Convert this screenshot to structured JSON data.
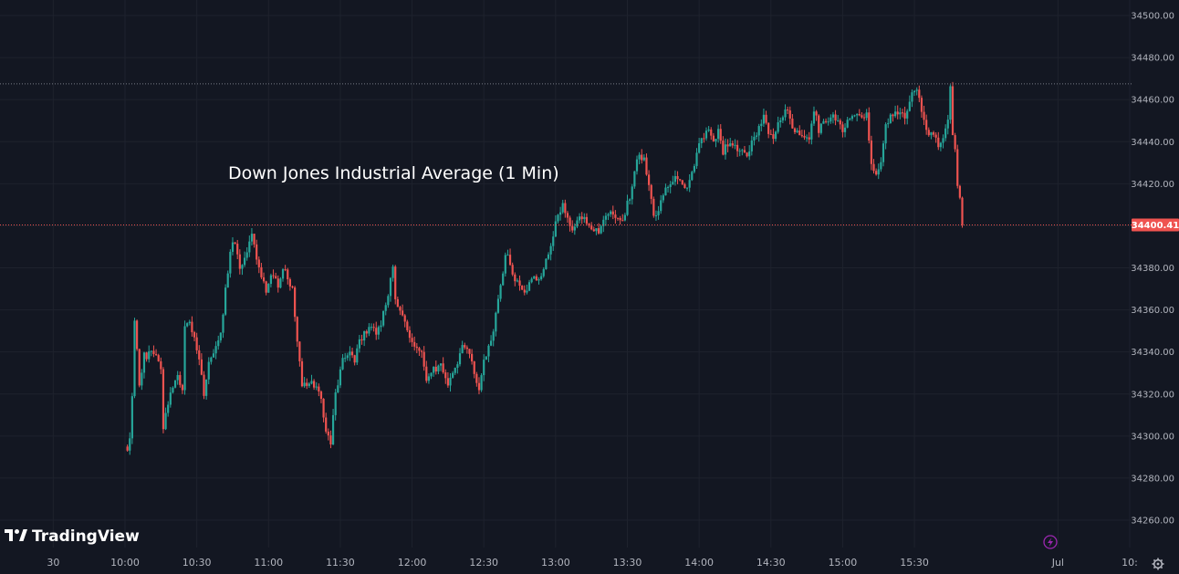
{
  "chart_data": {
    "type": "candlestick",
    "title": "Down Jones Industrial Average (1 Min)",
    "brand": "TradingView",
    "colors": {
      "background": "#131722",
      "up": "#26a69a",
      "down": "#ef5350",
      "grid": "#1e222d",
      "text": "#b2b5be",
      "last_price_line": "#ef5350",
      "high_line": "#787b86",
      "lightning": "#9c27b0"
    },
    "y_axis": {
      "min": 34250,
      "max": 34505,
      "ticks": [
        "34500.00",
        "34480.00",
        "34460.00",
        "34440.00",
        "34420.00",
        "34400.00",
        "34380.00",
        "34360.00",
        "34340.00",
        "34320.00",
        "34300.00",
        "34280.00",
        "34260.00"
      ],
      "tick_values": [
        34500,
        34480,
        34460,
        34440,
        34420,
        34400,
        34380,
        34360,
        34340,
        34320,
        34300,
        34280,
        34260
      ],
      "position": "right"
    },
    "x_axis": {
      "labels": [
        "30",
        "10:00",
        "10:30",
        "11:00",
        "11:30",
        "12:00",
        "12:30",
        "13:00",
        "13:30",
        "14:00",
        "14:30",
        "15:00",
        "15:30",
        "Jul",
        "10:"
      ],
      "label_minutes": [
        -30,
        0,
        30,
        60,
        90,
        120,
        150,
        180,
        210,
        240,
        270,
        300,
        330,
        390,
        420
      ],
      "session_start": "09:30",
      "interval": "1 Min",
      "minute_range": [
        -47,
        425
      ]
    },
    "last_price": 34400.41,
    "last_price_label": "34400.41",
    "high_price": 34467.5,
    "anchors": [
      [
        1,
        34293
      ],
      [
        2,
        34300
      ],
      [
        3,
        34318
      ],
      [
        4,
        34355
      ],
      [
        6,
        34325
      ],
      [
        8,
        34338
      ],
      [
        12,
        34340
      ],
      [
        15,
        34333
      ],
      [
        16,
        34305
      ],
      [
        19,
        34322
      ],
      [
        22,
        34330
      ],
      [
        24,
        34320
      ],
      [
        25,
        34352
      ],
      [
        27,
        34355
      ],
      [
        31,
        34335
      ],
      [
        33,
        34320
      ],
      [
        35,
        34335
      ],
      [
        40,
        34350
      ],
      [
        44,
        34388
      ],
      [
        46,
        34393
      ],
      [
        48,
        34380
      ],
      [
        51,
        34387
      ],
      [
        53,
        34395
      ],
      [
        56,
        34380
      ],
      [
        59,
        34370
      ],
      [
        61,
        34378
      ],
      [
        64,
        34372
      ],
      [
        66,
        34380
      ],
      [
        68,
        34375
      ],
      [
        70,
        34370
      ],
      [
        72,
        34345
      ],
      [
        74,
        34325
      ],
      [
        78,
        34326
      ],
      [
        82,
        34318
      ],
      [
        84,
        34302
      ],
      [
        86,
        34296
      ],
      [
        88,
        34320
      ],
      [
        91,
        34338
      ],
      [
        93,
        34340
      ],
      [
        96,
        34336
      ],
      [
        98,
        34346
      ],
      [
        102,
        34350
      ],
      [
        106,
        34350
      ],
      [
        110,
        34368
      ],
      [
        112,
        34379
      ],
      [
        113,
        34365
      ],
      [
        116,
        34358
      ],
      [
        119,
        34345
      ],
      [
        122,
        34342
      ],
      [
        124,
        34340
      ],
      [
        126,
        34328
      ],
      [
        128,
        34330
      ],
      [
        130,
        34332
      ],
      [
        132,
        34335
      ],
      [
        135,
        34324
      ],
      [
        138,
        34332
      ],
      [
        140,
        34340
      ],
      [
        142,
        34343
      ],
      [
        144,
        34338
      ],
      [
        146,
        34331
      ],
      [
        148,
        34321
      ],
      [
        150,
        34335
      ],
      [
        153,
        34345
      ],
      [
        155,
        34358
      ],
      [
        157,
        34370
      ],
      [
        159,
        34385
      ],
      [
        160,
        34387
      ],
      [
        162,
        34376
      ],
      [
        165,
        34370
      ],
      [
        168,
        34369
      ],
      [
        170,
        34375
      ],
      [
        173,
        34373
      ],
      [
        175,
        34381
      ],
      [
        177,
        34385
      ],
      [
        179,
        34395
      ],
      [
        181,
        34406
      ],
      [
        183,
        34410
      ],
      [
        185,
        34402
      ],
      [
        187,
        34398
      ],
      [
        190,
        34405
      ],
      [
        193,
        34401
      ],
      [
        196,
        34399
      ],
      [
        198,
        34397
      ],
      [
        200,
        34403
      ],
      [
        203,
        34405
      ],
      [
        206,
        34404
      ],
      [
        208,
        34403
      ],
      [
        211,
        34414
      ],
      [
        213,
        34425
      ],
      [
        215,
        34435
      ],
      [
        217,
        34431
      ],
      [
        219,
        34421
      ],
      [
        221,
        34406
      ],
      [
        223,
        34407
      ],
      [
        225,
        34415
      ],
      [
        227,
        34420
      ],
      [
        230,
        34424
      ],
      [
        232,
        34420
      ],
      [
        234,
        34416
      ],
      [
        236,
        34420
      ],
      [
        238,
        34430
      ],
      [
        240,
        34438
      ],
      [
        242,
        34442
      ],
      [
        244,
        34447
      ],
      [
        246,
        34440
      ],
      [
        248,
        34445
      ],
      [
        250,
        34435
      ],
      [
        252,
        34439
      ],
      [
        254,
        34440
      ],
      [
        256,
        34437
      ],
      [
        258,
        34435
      ],
      [
        260,
        34434
      ],
      [
        263,
        34441
      ],
      [
        265,
        34447
      ],
      [
        267,
        34451
      ],
      [
        269,
        34445
      ],
      [
        271,
        34441
      ],
      [
        273,
        34449
      ],
      [
        275,
        34452
      ],
      [
        277,
        34455
      ],
      [
        279,
        34448
      ],
      [
        281,
        34445
      ],
      [
        284,
        34443
      ],
      [
        286,
        34441
      ],
      [
        288,
        34455
      ],
      [
        290,
        34446
      ],
      [
        293,
        34449
      ],
      [
        296,
        34452
      ],
      [
        298,
        34451
      ],
      [
        300,
        34445
      ],
      [
        302,
        34451
      ],
      [
        304,
        34452
      ],
      [
        306,
        34454
      ],
      [
        308,
        34450
      ],
      [
        310,
        34453
      ],
      [
        312,
        34431
      ],
      [
        314,
        34425
      ],
      [
        316,
        34429
      ],
      [
        318,
        34447
      ],
      [
        320,
        34452
      ],
      [
        322,
        34453
      ],
      [
        324,
        34454
      ],
      [
        326,
        34453
      ],
      [
        328,
        34458
      ],
      [
        330,
        34466
      ],
      [
        332,
        34462
      ],
      [
        334,
        34450
      ],
      [
        336,
        34443
      ],
      [
        338,
        34444
      ],
      [
        340,
        34438
      ],
      [
        342,
        34440
      ],
      [
        344,
        34451
      ],
      [
        345,
        34467
      ],
      [
        346,
        34445
      ],
      [
        347,
        34435
      ],
      [
        348,
        34420
      ],
      [
        349,
        34413
      ],
      [
        350,
        34400.41
      ]
    ]
  }
}
